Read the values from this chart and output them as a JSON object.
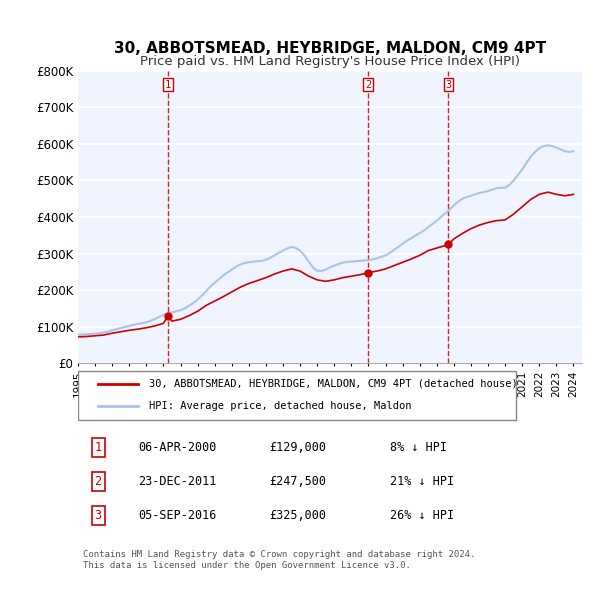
{
  "title": "30, ABBOTSMEAD, HEYBRIDGE, MALDON, CM9 4PT",
  "subtitle": "Price paid vs. HM Land Registry's House Price Index (HPI)",
  "ylabel": "",
  "ylim": [
    0,
    800000
  ],
  "yticks": [
    0,
    100000,
    200000,
    300000,
    400000,
    500000,
    600000,
    700000,
    800000
  ],
  "ytick_labels": [
    "£0",
    "£100K",
    "£200K",
    "£300K",
    "£400K",
    "£500K",
    "£600K",
    "£700K",
    "£800K"
  ],
  "xlim_start": 1995.0,
  "xlim_end": 2024.5,
  "background_color": "#ffffff",
  "plot_bg_color": "#f0f4ff",
  "grid_color": "#ffffff",
  "hpi_color": "#aac4e8",
  "price_color": "#cc0000",
  "vline_color": "#cc0000",
  "title_fontsize": 11,
  "subtitle_fontsize": 9.5,
  "transactions": [
    {
      "date": "06-APR-2000",
      "price": 129000,
      "year_x": 2000.27,
      "label": "1",
      "hpi_pct": "8% ↓ HPI"
    },
    {
      "date": "23-DEC-2011",
      "price": 247500,
      "year_x": 2011.98,
      "label": "2",
      "hpi_pct": "21% ↓ HPI"
    },
    {
      "date": "05-SEP-2016",
      "price": 325000,
      "year_x": 2016.68,
      "label": "3",
      "hpi_pct": "26% ↓ HPI"
    }
  ],
  "legend_red_label": "30, ABBOTSMEAD, HEYBRIDGE, MALDON, CM9 4PT (detached house)",
  "legend_blue_label": "HPI: Average price, detached house, Maldon",
  "footer": "Contains HM Land Registry data © Crown copyright and database right 2024.\nThis data is licensed under the Open Government Licence v3.0.",
  "hpi_data_x": [
    1995.0,
    1995.25,
    1995.5,
    1995.75,
    1996.0,
    1996.25,
    1996.5,
    1996.75,
    1997.0,
    1997.25,
    1997.5,
    1997.75,
    1998.0,
    1998.25,
    1998.5,
    1998.75,
    1999.0,
    1999.25,
    1999.5,
    1999.75,
    2000.0,
    2000.25,
    2000.5,
    2000.75,
    2001.0,
    2001.25,
    2001.5,
    2001.75,
    2002.0,
    2002.25,
    2002.5,
    2002.75,
    2003.0,
    2003.25,
    2003.5,
    2003.75,
    2004.0,
    2004.25,
    2004.5,
    2004.75,
    2005.0,
    2005.25,
    2005.5,
    2005.75,
    2006.0,
    2006.25,
    2006.5,
    2006.75,
    2007.0,
    2007.25,
    2007.5,
    2007.75,
    2008.0,
    2008.25,
    2008.5,
    2008.75,
    2009.0,
    2009.25,
    2009.5,
    2009.75,
    2010.0,
    2010.25,
    2010.5,
    2010.75,
    2011.0,
    2011.25,
    2011.5,
    2011.75,
    2012.0,
    2012.25,
    2012.5,
    2012.75,
    2013.0,
    2013.25,
    2013.5,
    2013.75,
    2014.0,
    2014.25,
    2014.5,
    2014.75,
    2015.0,
    2015.25,
    2015.5,
    2015.75,
    2016.0,
    2016.25,
    2016.5,
    2016.75,
    2017.0,
    2017.25,
    2017.5,
    2017.75,
    2018.0,
    2018.25,
    2018.5,
    2018.75,
    2019.0,
    2019.25,
    2019.5,
    2019.75,
    2020.0,
    2020.25,
    2020.5,
    2020.75,
    2021.0,
    2021.25,
    2021.5,
    2021.75,
    2022.0,
    2022.25,
    2022.5,
    2022.75,
    2023.0,
    2023.25,
    2023.5,
    2023.75,
    2024.0
  ],
  "hpi_data_y": [
    78000,
    78500,
    79000,
    80000,
    81000,
    82000,
    84000,
    86000,
    90000,
    93000,
    96000,
    99000,
    102000,
    105000,
    107000,
    109000,
    112000,
    116000,
    121000,
    127000,
    132000,
    136000,
    139000,
    142000,
    145000,
    150000,
    157000,
    165000,
    174000,
    185000,
    197000,
    210000,
    220000,
    230000,
    240000,
    248000,
    256000,
    264000,
    270000,
    274000,
    276000,
    278000,
    279000,
    280000,
    283000,
    288000,
    295000,
    302000,
    308000,
    314000,
    318000,
    315000,
    308000,
    295000,
    278000,
    262000,
    253000,
    252000,
    256000,
    262000,
    267000,
    271000,
    275000,
    277000,
    278000,
    279000,
    280000,
    281000,
    282000,
    284000,
    287000,
    291000,
    295000,
    302000,
    310000,
    318000,
    327000,
    335000,
    342000,
    349000,
    356000,
    363000,
    372000,
    381000,
    390000,
    400000,
    410000,
    420000,
    432000,
    442000,
    450000,
    455000,
    458000,
    462000,
    466000,
    468000,
    471000,
    475000,
    479000,
    480000,
    480000,
    488000,
    500000,
    515000,
    530000,
    548000,
    565000,
    578000,
    588000,
    594000,
    596000,
    594000,
    590000,
    585000,
    580000,
    578000,
    580000
  ],
  "price_data_x": [
    1995.0,
    1995.5,
    1996.0,
    1996.5,
    1997.0,
    1997.5,
    1998.0,
    1998.5,
    1999.0,
    1999.5,
    2000.0,
    2000.27,
    2000.5,
    2001.0,
    2001.5,
    2002.0,
    2002.5,
    2003.0,
    2003.5,
    2004.0,
    2004.5,
    2005.0,
    2005.5,
    2006.0,
    2006.5,
    2007.0,
    2007.5,
    2008.0,
    2008.5,
    2009.0,
    2009.5,
    2010.0,
    2010.5,
    2011.0,
    2011.5,
    2011.98,
    2012.0,
    2012.5,
    2013.0,
    2013.5,
    2014.0,
    2014.5,
    2015.0,
    2015.5,
    2016.0,
    2016.5,
    2016.68,
    2017.0,
    2017.5,
    2018.0,
    2018.5,
    2019.0,
    2019.5,
    2020.0,
    2020.5,
    2021.0,
    2021.5,
    2022.0,
    2022.5,
    2023.0,
    2023.5,
    2024.0
  ],
  "price_data_y": [
    72000,
    73000,
    75000,
    77000,
    82000,
    86000,
    90000,
    93000,
    97000,
    102000,
    109000,
    129000,
    115000,
    120000,
    130000,
    142000,
    158000,
    170000,
    182000,
    195000,
    208000,
    218000,
    226000,
    234000,
    244000,
    252000,
    258000,
    252000,
    238000,
    228000,
    224000,
    228000,
    234000,
    238000,
    242000,
    247500,
    248000,
    252000,
    258000,
    267000,
    276000,
    285000,
    295000,
    308000,
    315000,
    322000,
    325000,
    340000,
    355000,
    368000,
    378000,
    385000,
    390000,
    392000,
    408000,
    428000,
    448000,
    462000,
    468000,
    462000,
    458000,
    462000
  ]
}
